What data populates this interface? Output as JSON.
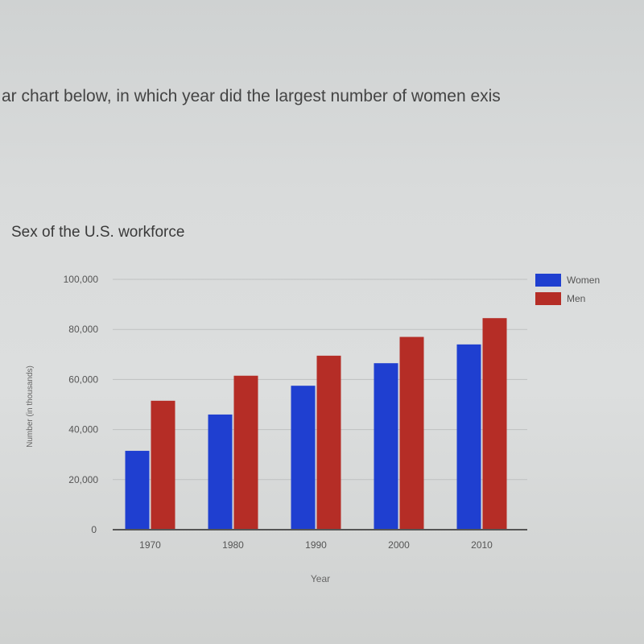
{
  "question": {
    "text": "ar chart below, in which year did the largest number of women exis"
  },
  "chart_data": {
    "type": "bar",
    "title": "Sex of the U.S. workforce",
    "xlabel": "Year",
    "ylabel": "Number (in thousands)",
    "categories": [
      "1970",
      "1980",
      "1990",
      "2000",
      "2010"
    ],
    "series": [
      {
        "name": "Women",
        "color": "#1f3fd0",
        "values": [
          31500,
          46000,
          57500,
          66500,
          74000
        ]
      },
      {
        "name": "Men",
        "color": "#b52d26",
        "values": [
          51500,
          61500,
          69500,
          77000,
          84500
        ]
      }
    ],
    "ylim": [
      0,
      100000
    ],
    "yticks": [
      "0",
      "20,000",
      "40,000",
      "60,000",
      "80,000",
      "100,000"
    ],
    "legend_position": "top-right",
    "grid": true
  }
}
